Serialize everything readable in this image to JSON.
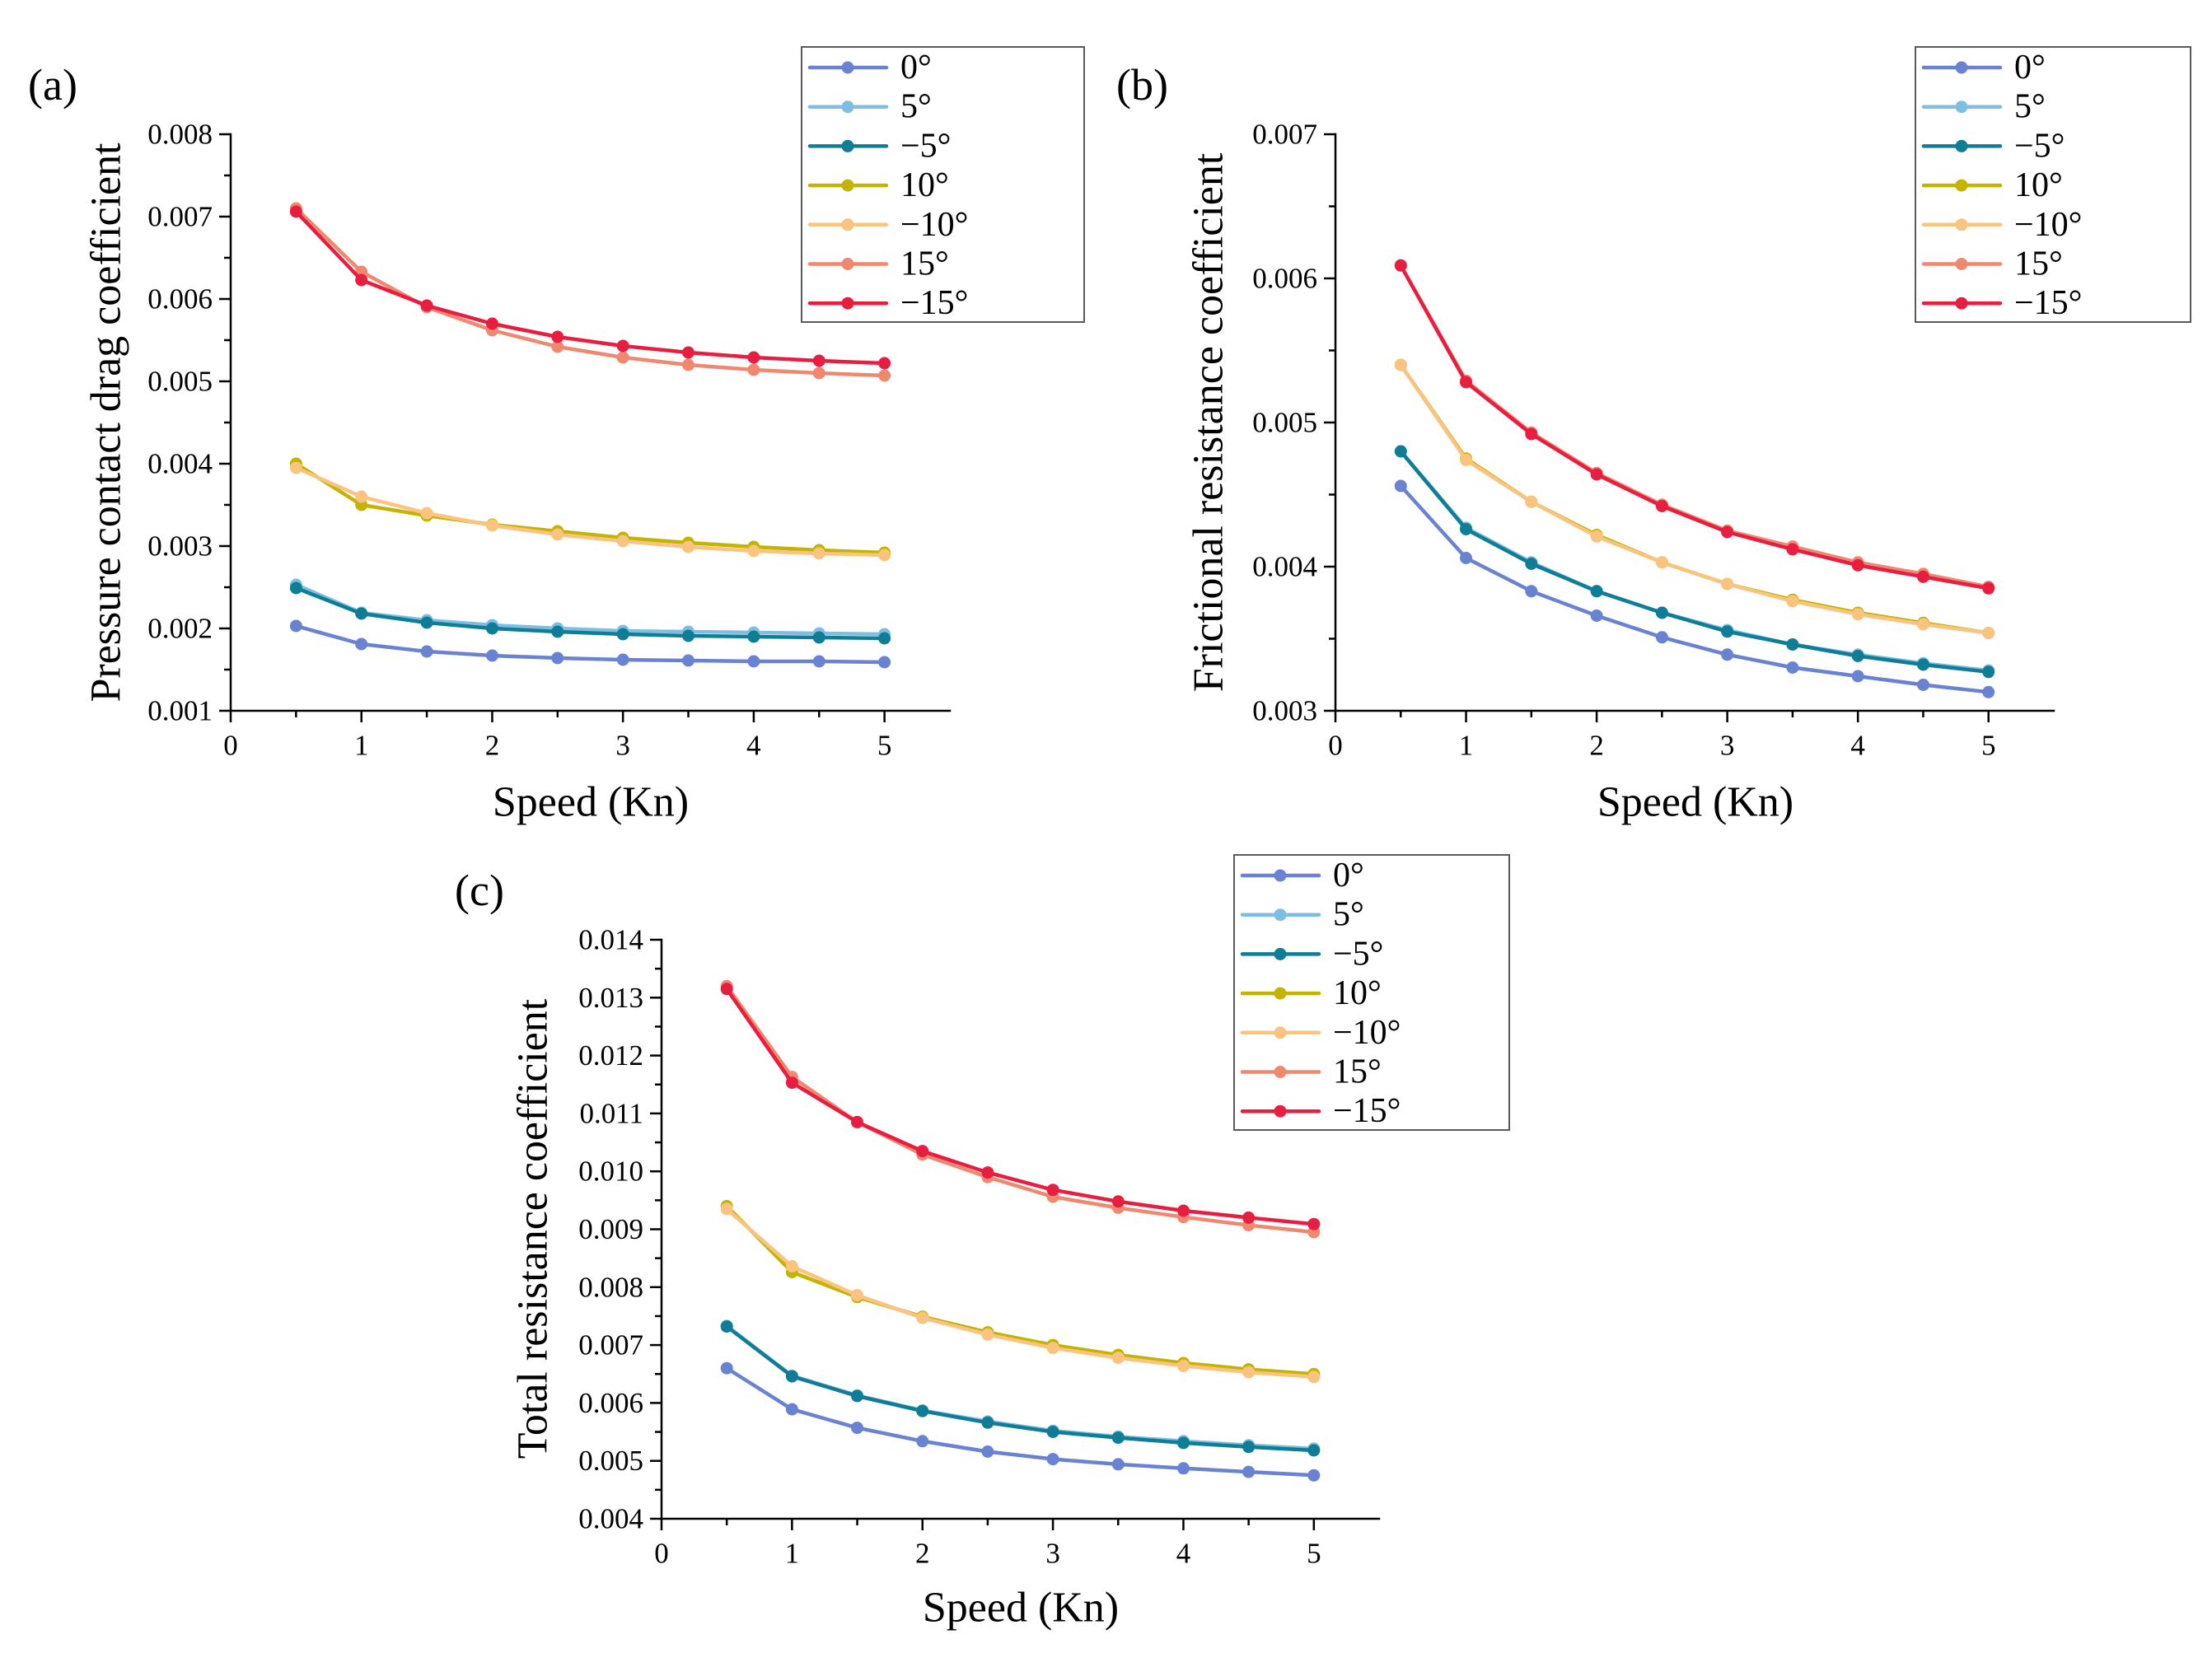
{
  "chart_data": [
    {
      "panel_label": "(a)",
      "type": "line",
      "title": "",
      "xlabel": "Speed (Kn)",
      "ylabel": "Pressure contact drag coefficient",
      "xlim": [
        0,
        5.5
      ],
      "ylim": [
        0.001,
        0.008
      ],
      "xticks": [
        0,
        1,
        2,
        3,
        4,
        5
      ],
      "xtick_labels": [
        "0",
        "1",
        "2",
        "3",
        "4",
        "5"
      ],
      "yticks": [
        0.001,
        0.002,
        0.003,
        0.004,
        0.005,
        0.006,
        0.007,
        0.008
      ],
      "ytick_labels": [
        "0.001",
        "0.002",
        "0.003",
        "0.004",
        "0.005",
        "0.006",
        "0.007",
        "0.008"
      ],
      "grid": false,
      "legend_position": "top-right",
      "x": [
        0.5,
        1,
        1.5,
        2,
        2.5,
        3,
        3.5,
        4,
        4.5,
        5
      ],
      "series": [
        {
          "name": "0°",
          "color": "#6982d2",
          "values": [
            0.00203,
            0.00181,
            0.00172,
            0.00167,
            0.00164,
            0.00162,
            0.00161,
            0.0016,
            0.0016,
            0.00159
          ]
        },
        {
          "name": "5°",
          "color": "#7ebee2",
          "values": [
            0.00253,
            0.00219,
            0.0021,
            0.00204,
            0.002,
            0.00197,
            0.00196,
            0.00195,
            0.00194,
            0.00193
          ]
        },
        {
          "name": "−5°",
          "color": "#107d96",
          "values": [
            0.00249,
            0.00218,
            0.00207,
            0.002,
            0.00196,
            0.00193,
            0.00191,
            0.0019,
            0.00189,
            0.00188
          ]
        },
        {
          "name": "10°",
          "color": "#c2b400",
          "values": [
            0.004,
            0.0035,
            0.00337,
            0.00326,
            0.00318,
            0.0031,
            0.00304,
            0.00299,
            0.00295,
            0.00292
          ]
        },
        {
          "name": "−10°",
          "color": "#fac480",
          "values": [
            0.00395,
            0.0036,
            0.0034,
            0.00325,
            0.00314,
            0.00306,
            0.00299,
            0.00294,
            0.00291,
            0.00289
          ]
        },
        {
          "name": "15°",
          "color": "#f08870",
          "values": [
            0.0071,
            0.00633,
            0.0059,
            0.00562,
            0.00542,
            0.00529,
            0.0052,
            0.00514,
            0.0051,
            0.00507
          ]
        },
        {
          "name": "−15°",
          "color": "#e81e40",
          "values": [
            0.00706,
            0.00623,
            0.00592,
            0.0057,
            0.00554,
            0.00543,
            0.00535,
            0.00529,
            0.00525,
            0.00522
          ]
        }
      ]
    },
    {
      "panel_label": "(b)",
      "type": "line",
      "title": "",
      "xlabel": "Speed (Kn)",
      "ylabel": "Frictional resistance coefficient",
      "xlim": [
        0,
        5.5
      ],
      "ylim": [
        0.003,
        0.007
      ],
      "xticks": [
        0,
        1,
        2,
        3,
        4,
        5
      ],
      "xtick_labels": [
        "0",
        "1",
        "2",
        "3",
        "4",
        "5"
      ],
      "yticks": [
        0.003,
        0.004,
        0.005,
        0.006,
        0.007
      ],
      "ytick_labels": [
        "0.003",
        "0.004",
        "0.005",
        "0.006",
        "0.007"
      ],
      "grid": false,
      "legend_position": "top-right",
      "x": [
        0.5,
        1,
        1.5,
        2,
        2.5,
        3,
        3.5,
        4,
        4.5,
        5
      ],
      "series": [
        {
          "name": "0°",
          "color": "#6982d2",
          "values": [
            0.00456,
            0.00406,
            0.00383,
            0.00366,
            0.00351,
            0.00339,
            0.0033,
            0.00324,
            0.00318,
            0.00313
          ]
        },
        {
          "name": "5°",
          "color": "#7ebee2",
          "values": [
            0.0048,
            0.00427,
            0.00403,
            0.00383,
            0.00368,
            0.00356,
            0.00346,
            0.00339,
            0.00333,
            0.00328
          ]
        },
        {
          "name": "−5°",
          "color": "#107d96",
          "values": [
            0.0048,
            0.00426,
            0.00402,
            0.00383,
            0.00368,
            0.00355,
            0.00346,
            0.00338,
            0.00332,
            0.00327
          ]
        },
        {
          "name": "10°",
          "color": "#c2b400",
          "values": [
            0.0054,
            0.00475,
            0.00445,
            0.00422,
            0.00403,
            0.00388,
            0.00377,
            0.00368,
            0.00361,
            0.00354
          ]
        },
        {
          "name": "−10°",
          "color": "#fac480",
          "values": [
            0.0054,
            0.00474,
            0.00445,
            0.00421,
            0.00403,
            0.00388,
            0.00376,
            0.00367,
            0.0036,
            0.00354
          ]
        },
        {
          "name": "15°",
          "color": "#f08870",
          "values": [
            0.00609,
            0.00529,
            0.00493,
            0.00465,
            0.00443,
            0.00425,
            0.00414,
            0.00403,
            0.00395,
            0.00386
          ]
        },
        {
          "name": "−15°",
          "color": "#e81e40",
          "values": [
            0.00609,
            0.00528,
            0.00492,
            0.00464,
            0.00442,
            0.00424,
            0.00412,
            0.00401,
            0.00393,
            0.00385
          ]
        }
      ]
    },
    {
      "panel_label": "(c)",
      "type": "line",
      "title": "",
      "xlabel": "Speed (Kn)",
      "ylabel": "Total resistance coefficient",
      "xlim": [
        0,
        5.5
      ],
      "ylim": [
        0.004,
        0.014
      ],
      "xticks": [
        0,
        1,
        2,
        3,
        4,
        5
      ],
      "xtick_labels": [
        "0",
        "1",
        "2",
        "3",
        "4",
        "5"
      ],
      "yticks": [
        0.004,
        0.005,
        0.006,
        0.007,
        0.008,
        0.009,
        0.01,
        0.011,
        0.012,
        0.013,
        0.014
      ],
      "ytick_labels": [
        "0.004",
        "0.005",
        "0.006",
        "0.007",
        "0.008",
        "0.009",
        "0.010",
        "0.011",
        "0.012",
        "0.013",
        "0.014"
      ],
      "grid": false,
      "legend_position": "top-right",
      "x": [
        0.5,
        1,
        1.5,
        2,
        2.5,
        3,
        3.5,
        4,
        4.5,
        5
      ],
      "series": [
        {
          "name": "0°",
          "color": "#6982d2",
          "values": [
            0.0066,
            0.00589,
            0.00557,
            0.00534,
            0.00516,
            0.00503,
            0.00494,
            0.00487,
            0.00481,
            0.00475
          ]
        },
        {
          "name": "5°",
          "color": "#7ebee2",
          "values": [
            0.00733,
            0.00647,
            0.00613,
            0.00587,
            0.00568,
            0.00552,
            0.00542,
            0.00534,
            0.00527,
            0.00521
          ]
        },
        {
          "name": "−5°",
          "color": "#107d96",
          "values": [
            0.00732,
            0.00646,
            0.00612,
            0.00586,
            0.00566,
            0.0055,
            0.0054,
            0.00531,
            0.00524,
            0.00518
          ]
        },
        {
          "name": "10°",
          "color": "#c2b400",
          "values": [
            0.0094,
            0.00826,
            0.00783,
            0.00749,
            0.00722,
            0.007,
            0.00683,
            0.00669,
            0.00658,
            0.0065
          ]
        },
        {
          "name": "−10°",
          "color": "#fac480",
          "values": [
            0.00935,
            0.00836,
            0.00786,
            0.00747,
            0.00718,
            0.00695,
            0.00678,
            0.00664,
            0.00653,
            0.00645
          ]
        },
        {
          "name": "15°",
          "color": "#f08870",
          "values": [
            0.0132,
            0.01163,
            0.01085,
            0.01029,
            0.0099,
            0.00956,
            0.00937,
            0.00921,
            0.00907,
            0.00895
          ]
        },
        {
          "name": "−15°",
          "color": "#e81e40",
          "values": [
            0.01315,
            0.01153,
            0.01085,
            0.01035,
            0.00998,
            0.00968,
            0.00948,
            0.00932,
            0.0092,
            0.00909
          ]
        }
      ]
    }
  ]
}
